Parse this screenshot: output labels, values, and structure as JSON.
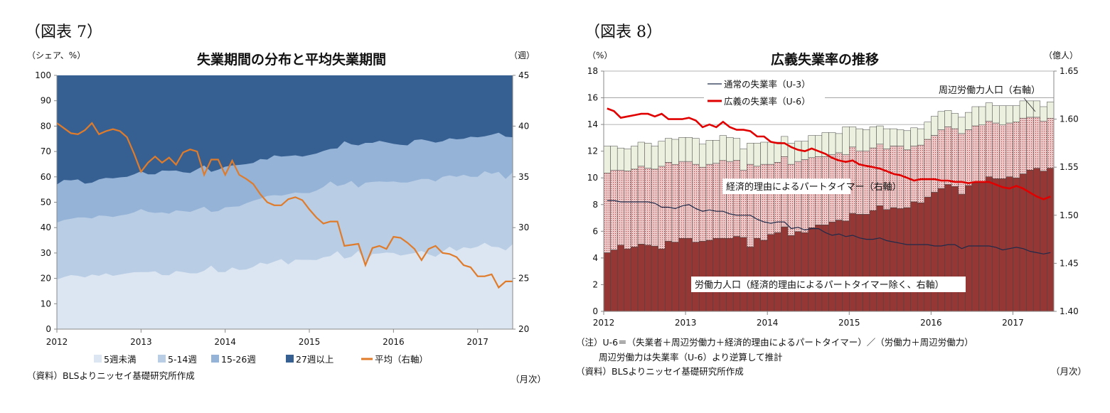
{
  "chart_data": [
    {
      "type": "area",
      "stacked": true,
      "figure_label": "（図表 7）",
      "title": "失業期間の分布と平均失業期間",
      "ylabel": "（シェア、%）",
      "y2label": "（週）",
      "xlabel": "（月次）",
      "source": "（資料）BLSよりニッセイ基礎研究所作成",
      "x_start": "2012-01",
      "x_end": "2017-06",
      "frequency": "monthly",
      "x_ticks": [
        "2012",
        "2013",
        "2014",
        "2015",
        "2016",
        "2017"
      ],
      "ylim": [
        0,
        100
      ],
      "y_ticks": [
        "0",
        "10",
        "20",
        "30",
        "40",
        "50",
        "60",
        "70",
        "80",
        "90",
        "100"
      ],
      "y2lim": [
        20,
        45
      ],
      "y2_ticks": [
        "20",
        "25",
        "30",
        "35",
        "40",
        "45"
      ],
      "grid": false,
      "legend_position": "bottom",
      "stack_tops_note": "cumulative share boundaries (%)",
      "series": [
        {
          "name": "5週未満",
          "axis": "left",
          "color": "#dce6f2",
          "cumulative_top": [
            19.5,
            20.5,
            21.3,
            21,
            20.4,
            21.5,
            21,
            22,
            21,
            21.5,
            22,
            22.4,
            22.5,
            22.5,
            22.8,
            21.3,
            21.2,
            22.9,
            22.5,
            22,
            22,
            23,
            25,
            22.5,
            22.5,
            24.3,
            23.3,
            23.5,
            24.5,
            26.2,
            25.6,
            26.6,
            27.6,
            25.5,
            27.4,
            27.3,
            27.3,
            27.2,
            28.3,
            28.8,
            30.7,
            27.8,
            28.5,
            30.9,
            26.5,
            29.6,
            29.8,
            30.2,
            30,
            29,
            29.5,
            30,
            30.8,
            29.5,
            28.5,
            30.5,
            32.5,
            30.8,
            32.3,
            31.8,
            32.5,
            34,
            32.5,
            32.3,
            31,
            33.5
          ]
        },
        {
          "name": "5-14週",
          "axis": "left",
          "color": "#b9cde5",
          "cumulative_top": [
            42,
            43,
            43.5,
            44,
            44,
            43.6,
            44.8,
            44.6,
            44.2,
            44.8,
            45.2,
            46,
            47.3,
            46.2,
            45.8,
            46,
            45.5,
            46.8,
            46.5,
            46.2,
            47.2,
            48.2,
            46.2,
            46.5,
            48,
            48.2,
            48.4,
            49.6,
            50.6,
            51.4,
            52.5,
            52.8,
            52.6,
            53.2,
            53.8,
            53.6,
            53.6,
            54.6,
            56,
            58.2,
            56.4,
            57,
            58.4,
            55.8,
            57.7,
            58,
            58.2,
            58,
            58.2,
            57.8,
            57.8,
            58.5,
            59.2,
            59.2,
            58.2,
            60,
            60.6,
            60,
            60.8,
            60,
            60,
            62.2,
            61.2,
            62,
            59.2,
            61.8
          ]
        },
        {
          "name": "15-26週",
          "axis": "left",
          "color": "#95b3d7",
          "cumulative_top": [
            57,
            58.8,
            58.6,
            59,
            57.3,
            57.7,
            59,
            59.6,
            59.4,
            59.8,
            60,
            61,
            62.2,
            61,
            61,
            62.5,
            62.4,
            62.5,
            61.8,
            61.5,
            63,
            64.5,
            62,
            62.8,
            64,
            64.5,
            64.7,
            65,
            65.5,
            67,
            66.8,
            68.5,
            68,
            68.2,
            68.5,
            68,
            68.6,
            69.2,
            70.2,
            71,
            71.2,
            74,
            72.8,
            72.4,
            73.4,
            73.4,
            74.2,
            73.6,
            73,
            72.6,
            72.4,
            74.5,
            74.8,
            74.2,
            73.5,
            74,
            75.2,
            74.8,
            75,
            75.8,
            75.6,
            76,
            76.6,
            77.4,
            75.8,
            75.6
          ]
        },
        {
          "name": "27週以上",
          "axis": "left",
          "color": "#376092",
          "cumulative_top": 100
        },
        {
          "name": "平均（右軸）",
          "axis": "right",
          "type": "line",
          "color": "#e07b2a",
          "values": [
            40.3,
            39.8,
            39.3,
            39.2,
            39.6,
            40.3,
            39.2,
            39.5,
            39.7,
            39.5,
            38.9,
            37.3,
            35.5,
            36.4,
            37,
            36.4,
            36.9,
            36.2,
            37.4,
            37.7,
            37.5,
            35.2,
            36.7,
            36.7,
            35.2,
            36.6,
            35.2,
            34.8,
            34.3,
            33.3,
            32.5,
            32.2,
            32.2,
            32.8,
            33,
            32.7,
            31.8,
            31,
            30.4,
            30.6,
            30.6,
            28.2,
            28.3,
            28.4,
            26.3,
            28,
            28.2,
            27.9,
            29.1,
            29,
            28.5,
            27.9,
            26.8,
            27.9,
            28.2,
            27.5,
            27.4,
            27.1,
            26.3,
            26.1,
            25.2,
            25.2,
            25.4,
            24.1,
            24.7,
            24.7
          ]
        }
      ]
    },
    {
      "type": "bar+line",
      "figure_label": "（図表 8）",
      "title": "広義失業率の推移",
      "ylabel": "（%）",
      "y2label": "（億人）",
      "xlabel": "（月次）",
      "notes": [
        "（注）U-6＝（失業者＋周辺労働力＋経済的理由によるパートタイマー）／（労働力＋周辺労働力）",
        "周辺労働力は失業率（U-6）より逆算して推計",
        "（資料）BLSよりニッセイ基礎研究所作成"
      ],
      "x_start": "2012-01",
      "x_end": "2017-06",
      "frequency": "monthly",
      "x_ticks": [
        "2012",
        "2013",
        "2014",
        "2015",
        "2016",
        "2017"
      ],
      "ylim": [
        0,
        18
      ],
      "y_ticks": [
        "0",
        "2",
        "4",
        "6",
        "8",
        "10",
        "12",
        "14",
        "16",
        "18"
      ],
      "y2lim": [
        1.4,
        1.65
      ],
      "y2_ticks": [
        "1.40",
        "1.45",
        "1.50",
        "1.55",
        "1.60",
        "1.65"
      ],
      "grid": true,
      "legend_position": "top-left",
      "annotations": {
        "labor_force": "労働力人口（経済的理由によるパートタイマー除く、右軸）",
        "part_time": "経済的理由によるパートタイマー（右軸）",
        "marginal": "周辺労働力人口（右軸）"
      },
      "bars_stacked": [
        {
          "name": "労働力人口（経済的理由によるパートタイマー除く、右軸）",
          "axis": "right",
          "color": "#953735",
          "cumulative_top": [
            1.461,
            1.464,
            1.469,
            1.465,
            1.467,
            1.47,
            1.469,
            1.468,
            1.465,
            1.473,
            1.472,
            1.476,
            1.476,
            1.472,
            1.473,
            1.474,
            1.476,
            1.476,
            1.476,
            1.478,
            1.477,
            1.467,
            1.476,
            1.474,
            1.48,
            1.482,
            1.488,
            1.479,
            1.483,
            1.482,
            1.487,
            1.49,
            1.49,
            1.493,
            1.495,
            1.494,
            1.502,
            1.501,
            1.501,
            1.505,
            1.51,
            1.506,
            1.508,
            1.507,
            1.508,
            1.514,
            1.513,
            1.519,
            1.524,
            1.528,
            1.532,
            1.53,
            1.522,
            1.531,
            1.534,
            1.534,
            1.54,
            1.538,
            1.538,
            1.54,
            1.539,
            1.543,
            1.547,
            1.549,
            1.546,
            1.549
          ]
        },
        {
          "name": "経済的理由によるパートタイマー（右軸）",
          "axis": "right",
          "color": "#e6b9b8",
          "pattern": "dotted",
          "cumulative_top": [
            1.544,
            1.547,
            1.547,
            1.546,
            1.548,
            1.551,
            1.549,
            1.548,
            1.551,
            1.555,
            1.553,
            1.556,
            1.556,
            1.553,
            1.55,
            1.553,
            1.554,
            1.557,
            1.556,
            1.557,
            1.547,
            1.553,
            1.551,
            1.553,
            1.553,
            1.555,
            1.561,
            1.553,
            1.556,
            1.558,
            1.56,
            1.561,
            1.561,
            1.563,
            1.565,
            1.563,
            1.571,
            1.567,
            1.567,
            1.57,
            1.574,
            1.569,
            1.572,
            1.572,
            1.568,
            1.572,
            1.573,
            1.579,
            1.583,
            1.589,
            1.592,
            1.59,
            1.585,
            1.589,
            1.593,
            1.594,
            1.598,
            1.596,
            1.594,
            1.596,
            1.597,
            1.601,
            1.602,
            1.602,
            1.598,
            1.601
          ]
        },
        {
          "name": "周辺労働力人口（右軸）",
          "axis": "right",
          "color": "#ebf1de",
          "cumulative_top": [
            1.572,
            1.572,
            1.57,
            1.569,
            1.572,
            1.576,
            1.575,
            1.572,
            1.577,
            1.58,
            1.579,
            1.581,
            1.581,
            1.58,
            1.574,
            1.578,
            1.578,
            1.583,
            1.581,
            1.58,
            1.569,
            1.575,
            1.575,
            1.576,
            1.576,
            1.576,
            1.582,
            1.575,
            1.577,
            1.577,
            1.583,
            1.583,
            1.586,
            1.586,
            1.585,
            1.592,
            1.592,
            1.59,
            1.589,
            1.592,
            1.593,
            1.59,
            1.59,
            1.589,
            1.588,
            1.591,
            1.59,
            1.597,
            1.603,
            1.608,
            1.609,
            1.606,
            1.602,
            1.607,
            1.613,
            1.613,
            1.617,
            1.614,
            1.614,
            1.614,
            1.614,
            1.619,
            1.619,
            1.619,
            1.613,
            1.618
          ]
        }
      ],
      "lines": [
        {
          "name": "通常の失業率（U-3）",
          "axis": "left",
          "color": "#1f2a4a",
          "values": [
            8.3,
            8.3,
            8.2,
            8.2,
            8.2,
            8.2,
            8.2,
            8.1,
            7.8,
            7.8,
            7.7,
            7.9,
            8.0,
            7.7,
            7.5,
            7.6,
            7.5,
            7.5,
            7.3,
            7.2,
            7.2,
            7.2,
            6.9,
            6.7,
            6.6,
            6.7,
            6.7,
            6.2,
            6.3,
            6.1,
            6.2,
            6.2,
            5.9,
            5.7,
            5.8,
            5.6,
            5.7,
            5.5,
            5.4,
            5.4,
            5.5,
            5.3,
            5.2,
            5.1,
            5.0,
            5.0,
            5.0,
            5.0,
            4.9,
            4.9,
            5.0,
            5.0,
            4.7,
            4.9,
            4.9,
            4.9,
            4.9,
            4.8,
            4.6,
            4.7,
            4.8,
            4.7,
            4.5,
            4.4,
            4.3,
            4.4
          ]
        },
        {
          "name": "広義の失業率（U-6）",
          "axis": "left",
          "color": "#e00000",
          "values": [
            15.2,
            15.0,
            14.5,
            14.6,
            14.7,
            14.8,
            14.8,
            14.6,
            14.8,
            14.4,
            14.4,
            14.4,
            14.5,
            14.3,
            13.8,
            14.0,
            13.8,
            14.2,
            13.8,
            13.6,
            13.6,
            13.5,
            13.1,
            13.1,
            12.7,
            12.6,
            12.6,
            12.3,
            12.1,
            12.0,
            12.2,
            12.0,
            11.8,
            11.5,
            11.3,
            11.2,
            11.3,
            11.0,
            10.9,
            10.8,
            10.7,
            10.5,
            10.3,
            10.2,
            10.0,
            9.8,
            9.9,
            9.9,
            9.9,
            9.8,
            9.8,
            9.7,
            9.7,
            9.6,
            9.7,
            9.7,
            9.7,
            9.5,
            9.3,
            9.2,
            9.4,
            9.2,
            8.9,
            8.6,
            8.4,
            8.6
          ]
        }
      ]
    }
  ]
}
